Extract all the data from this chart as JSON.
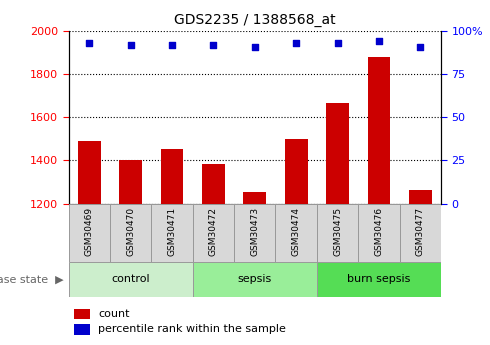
{
  "title": "GDS2235 / 1388568_at",
  "samples": [
    "GSM30469",
    "GSM30470",
    "GSM30471",
    "GSM30472",
    "GSM30473",
    "GSM30474",
    "GSM30475",
    "GSM30476",
    "GSM30477"
  ],
  "counts": [
    1490,
    1400,
    1455,
    1385,
    1255,
    1500,
    1665,
    1880,
    1265
  ],
  "percentile_ranks": [
    93,
    92,
    92,
    92,
    91,
    93,
    93,
    94,
    91
  ],
  "ylim_left": [
    1200,
    2000
  ],
  "ylim_right": [
    0,
    100
  ],
  "yticks_left": [
    1200,
    1400,
    1600,
    1800,
    2000
  ],
  "yticks_right": [
    0,
    25,
    50,
    75,
    100
  ],
  "bar_color": "#cc0000",
  "dot_color": "#0000cc",
  "groups": [
    {
      "label": "control",
      "start": 0,
      "end": 3
    },
    {
      "label": "sepsis",
      "start": 3,
      "end": 6
    },
    {
      "label": "burn sepsis",
      "start": 6,
      "end": 9
    }
  ],
  "group_colors": [
    "#cceecc",
    "#99ee99",
    "#55dd55"
  ],
  "legend_count_label": "count",
  "legend_pct_label": "percentile rank within the sample",
  "bar_width": 0.55
}
